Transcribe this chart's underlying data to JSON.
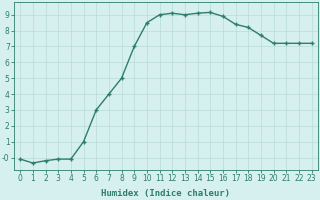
{
  "x": [
    0,
    1,
    2,
    3,
    4,
    5,
    6,
    7,
    8,
    9,
    10,
    11,
    12,
    13,
    14,
    15,
    16,
    17,
    18,
    19,
    20,
    21,
    22,
    23
  ],
  "y": [
    -0.1,
    -0.35,
    -0.2,
    -0.1,
    -0.1,
    1.0,
    3.0,
    4.0,
    5.0,
    7.0,
    8.5,
    9.0,
    9.1,
    9.0,
    9.1,
    9.15,
    8.9,
    8.4,
    8.2,
    7.7,
    7.2,
    7.2,
    7.2,
    7.2
  ],
  "line_color": "#2e7d6e",
  "marker": "+",
  "markersize": 3.5,
  "bg_color": "#d6f0f0",
  "grid_color": "#b8dada",
  "xlabel": "Humidex (Indice chaleur)",
  "xlim": [
    -0.5,
    23.5
  ],
  "ylim": [
    -0.8,
    9.8
  ],
  "ytick_labels": [
    "9",
    "8",
    "7",
    "6",
    "5",
    "4",
    "3",
    "2",
    "1",
    "-0"
  ],
  "ytick_vals": [
    9,
    8,
    7,
    6,
    5,
    4,
    3,
    2,
    1,
    0
  ],
  "xticks": [
    0,
    1,
    2,
    3,
    4,
    5,
    6,
    7,
    8,
    9,
    10,
    11,
    12,
    13,
    14,
    15,
    16,
    17,
    18,
    19,
    20,
    21,
    22,
    23
  ],
  "title_color": "#2e7d6e",
  "xlabel_fontsize": 6.5,
  "tick_fontsize": 5.5,
  "linewidth": 1.0,
  "markeredgewidth": 1.0
}
